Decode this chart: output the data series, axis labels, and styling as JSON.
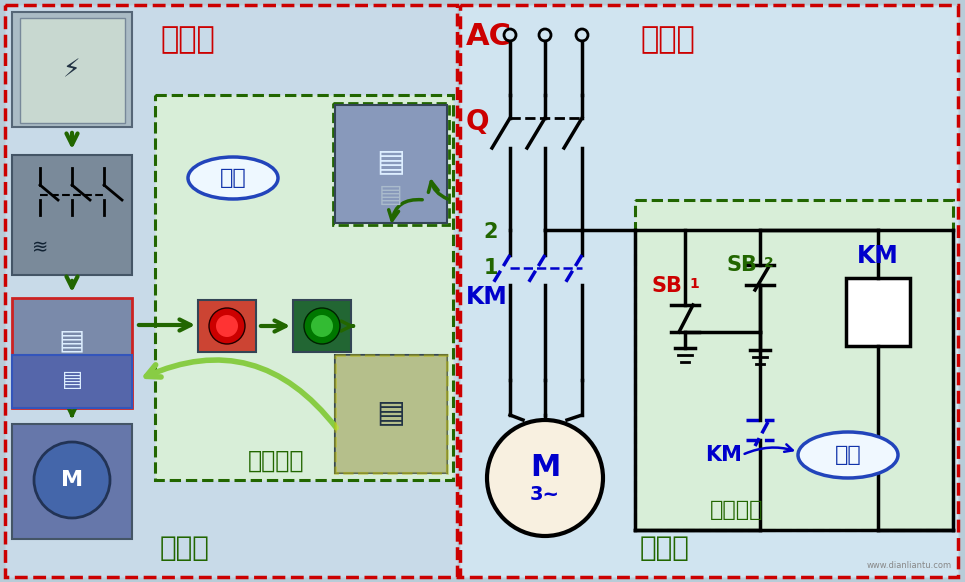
{
  "bg": "#b8ccd8",
  "left_bg": "#c8dae8",
  "right_bg": "#d0e4f0",
  "inner_green_bg": "#d8eed8",
  "color_red": "#cc0000",
  "color_green": "#226600",
  "color_dark_green": "#226600",
  "color_blue": "#0000cc",
  "color_black": "#000000",
  "color_white": "#ffffff",
  "color_yellow": "#cccc00",
  "label_zhu": "主线路",
  "label_kong": "控制线路",
  "label_shi": "实物图",
  "label_dian": "电路图",
  "label_zi": "自锁",
  "label_ac": "AC",
  "label_q": "Q",
  "label_km": "KM",
  "label_sb1": "SB",
  "label_sb1s": "1",
  "label_sb2": "SB",
  "label_sb2s": "2",
  "label_m": "M",
  "label_3p": "3~",
  "label_2": "2",
  "label_1": "1"
}
